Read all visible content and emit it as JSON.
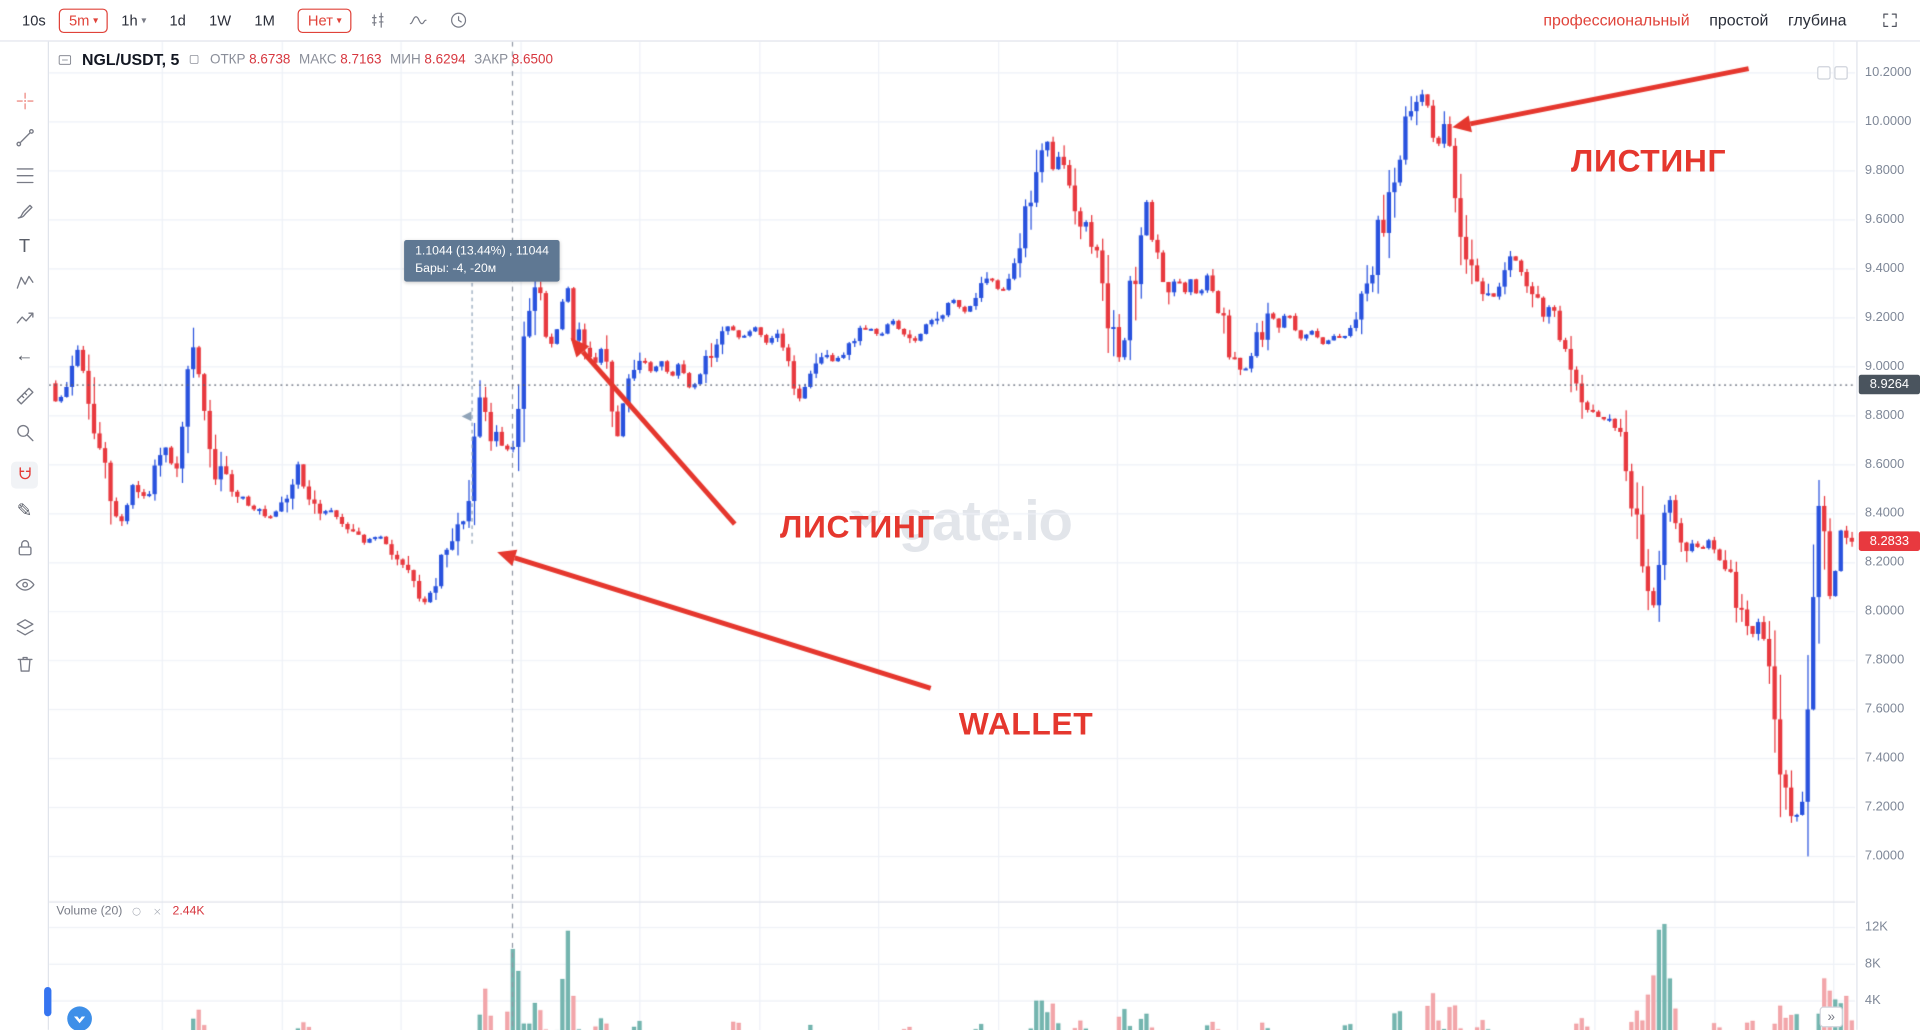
{
  "topbar": {
    "intervals": [
      "10s",
      "5m",
      "1h",
      "1d",
      "1W",
      "1M"
    ],
    "active_interval": "5m",
    "indicators_label": "Нет",
    "view_tabs": [
      "профессиональный",
      "простой",
      "глубина"
    ],
    "active_view_tab": "профессиональный"
  },
  "legend": {
    "symbol": "NGL/USDT, 5",
    "fields": [
      {
        "label": "ОТКР",
        "value": "8.6738"
      },
      {
        "label": "МАКС",
        "value": "8.7163"
      },
      {
        "label": "МИН",
        "value": "8.6294"
      },
      {
        "label": "ЗАКР",
        "value": "8.6500"
      }
    ]
  },
  "watermark": "gate.io",
  "price_axis": {
    "ticks": [
      "10.2000",
      "10.0000",
      "9.8000",
      "9.6000",
      "9.4000",
      "9.2000",
      "9.0000",
      "8.8000",
      "8.6000",
      "8.4000",
      "8.2000",
      "8.0000",
      "7.8000",
      "7.6000",
      "7.4000",
      "7.2000",
      "7.0000"
    ],
    "crosshair_price": "8.9264",
    "last_price": "8.2833"
  },
  "volume_pane": {
    "label": "Volume (20)",
    "current": "2.44K",
    "ticks": [
      "12K",
      "8K",
      "4K"
    ]
  },
  "colors": {
    "up": "#2952de",
    "down": "#e8393f",
    "accent_red": "#e5372e",
    "vol_up": "#74b5af",
    "vol_down": "#f2a6aa",
    "tooltip_bg": "#5f7893",
    "badge_dark": "#4a545e",
    "badge_red": "#e8393f",
    "grid": "#eef1f7"
  },
  "chart_data": {
    "type": "candlestick",
    "symbol": "NGL/USDT",
    "interval_minutes": 5,
    "ohlc_hovered": {
      "open": 8.6738,
      "high": 8.7163,
      "low": 8.6294,
      "close": 8.65
    },
    "y_axis": {
      "min": 7.0,
      "max": 10.2,
      "tick_step": 0.2
    },
    "crosshair_price": 8.9264,
    "last_price": 8.2833,
    "volume_current": 2440,
    "measure": {
      "line1": "1.1044 (13.44%) , 11044",
      "line2": "Бары: -4, -20м",
      "change": 1.1044,
      "percent": 13.44,
      "bars": -4,
      "time": "-20м"
    },
    "annotations": [
      {
        "text": "ЛИСТИНГ"
      },
      {
        "text": "ЛИСТИНГ"
      },
      {
        "text": "WALLET"
      }
    ],
    "price_path_keypoints": [
      [
        44,
        8.93
      ],
      [
        50,
        8.84
      ],
      [
        56,
        8.9
      ],
      [
        62,
        8.99
      ],
      [
        68,
        9.1
      ],
      [
        72,
        8.93
      ],
      [
        78,
        8.78
      ],
      [
        84,
        8.64
      ],
      [
        90,
        8.52
      ],
      [
        96,
        8.4
      ],
      [
        100,
        8.33
      ],
      [
        106,
        8.42
      ],
      [
        112,
        8.52
      ],
      [
        118,
        8.48
      ],
      [
        124,
        8.45
      ],
      [
        130,
        8.58
      ],
      [
        136,
        8.66
      ],
      [
        142,
        8.62
      ],
      [
        148,
        8.55
      ],
      [
        154,
        8.8
      ],
      [
        160,
        9.07
      ],
      [
        166,
        8.95
      ],
      [
        172,
        8.7
      ],
      [
        178,
        8.58
      ],
      [
        186,
        8.54
      ],
      [
        194,
        8.49
      ],
      [
        202,
        8.46
      ],
      [
        212,
        8.42
      ],
      [
        222,
        8.37
      ],
      [
        232,
        8.42
      ],
      [
        240,
        8.49
      ],
      [
        247,
        8.6
      ],
      [
        254,
        8.45
      ],
      [
        262,
        8.4
      ],
      [
        272,
        8.42
      ],
      [
        282,
        8.36
      ],
      [
        292,
        8.33
      ],
      [
        302,
        8.28
      ],
      [
        312,
        8.31
      ],
      [
        322,
        8.25
      ],
      [
        332,
        8.17
      ],
      [
        342,
        8.1
      ],
      [
        350,
        8.03
      ],
      [
        358,
        8.1
      ],
      [
        366,
        8.23
      ],
      [
        374,
        8.27
      ],
      [
        382,
        8.4
      ],
      [
        388,
        8.44
      ],
      [
        393,
        8.75
      ],
      [
        397,
        8.95
      ],
      [
        401,
        8.68
      ],
      [
        407,
        8.73
      ],
      [
        413,
        8.7
      ],
      [
        419,
        8.65
      ],
      [
        425,
        8.74
      ],
      [
        431,
        9.02
      ],
      [
        437,
        9.3
      ],
      [
        443,
        9.33
      ],
      [
        449,
        9.12
      ],
      [
        455,
        9.07
      ],
      [
        461,
        9.22
      ],
      [
        466,
        9.38
      ],
      [
        471,
        9.1
      ],
      [
        477,
        9.14
      ],
      [
        483,
        9.05
      ],
      [
        489,
        9.0
      ],
      [
        495,
        9.06
      ],
      [
        501,
        8.93
      ],
      [
        507,
        8.68
      ],
      [
        513,
        8.88
      ],
      [
        519,
        9.0
      ],
      [
        527,
        9.05
      ],
      [
        535,
        8.97
      ],
      [
        543,
        9.03
      ],
      [
        551,
        8.95
      ],
      [
        559,
        9.01
      ],
      [
        567,
        8.9
      ],
      [
        575,
        8.97
      ],
      [
        583,
        9.06
      ],
      [
        591,
        9.12
      ],
      [
        599,
        9.16
      ],
      [
        609,
        9.11
      ],
      [
        619,
        9.16
      ],
      [
        629,
        9.09
      ],
      [
        639,
        9.14
      ],
      [
        649,
        8.97
      ],
      [
        657,
        8.87
      ],
      [
        665,
        8.96
      ],
      [
        673,
        9.06
      ],
      [
        681,
        9.02
      ],
      [
        691,
        9.05
      ],
      [
        701,
        9.11
      ],
      [
        711,
        9.17
      ],
      [
        721,
        9.12
      ],
      [
        731,
        9.19
      ],
      [
        741,
        9.13
      ],
      [
        751,
        9.1
      ],
      [
        761,
        9.17
      ],
      [
        771,
        9.21
      ],
      [
        781,
        9.27
      ],
      [
        791,
        9.22
      ],
      [
        801,
        9.29
      ],
      [
        811,
        9.36
      ],
      [
        821,
        9.3
      ],
      [
        831,
        9.42
      ],
      [
        839,
        9.58
      ],
      [
        847,
        9.74
      ],
      [
        853,
        9.86
      ],
      [
        858,
        9.91
      ],
      [
        863,
        9.79
      ],
      [
        868,
        9.87
      ],
      [
        874,
        9.77
      ],
      [
        880,
        9.69
      ],
      [
        886,
        9.59
      ],
      [
        892,
        9.54
      ],
      [
        898,
        9.47
      ],
      [
        904,
        9.38
      ],
      [
        910,
        9.18
      ],
      [
        916,
        8.97
      ],
      [
        922,
        9.12
      ],
      [
        928,
        9.36
      ],
      [
        934,
        9.56
      ],
      [
        940,
        9.63
      ],
      [
        946,
        9.46
      ],
      [
        952,
        9.37
      ],
      [
        958,
        9.31
      ],
      [
        964,
        9.37
      ],
      [
        970,
        9.29
      ],
      [
        976,
        9.35
      ],
      [
        982,
        9.27
      ],
      [
        988,
        9.38
      ],
      [
        994,
        9.29
      ],
      [
        1000,
        9.19
      ],
      [
        1006,
        9.07
      ],
      [
        1012,
        8.99
      ],
      [
        1018,
        8.96
      ],
      [
        1024,
        9.03
      ],
      [
        1030,
        9.11
      ],
      [
        1036,
        9.17
      ],
      [
        1042,
        9.21
      ],
      [
        1048,
        9.15
      ],
      [
        1054,
        9.23
      ],
      [
        1060,
        9.15
      ],
      [
        1068,
        9.11
      ],
      [
        1076,
        9.15
      ],
      [
        1084,
        9.08
      ],
      [
        1092,
        9.13
      ],
      [
        1100,
        9.11
      ],
      [
        1106,
        9.17
      ],
      [
        1112,
        9.24
      ],
      [
        1118,
        9.33
      ],
      [
        1124,
        9.44
      ],
      [
        1130,
        9.56
      ],
      [
        1136,
        9.68
      ],
      [
        1142,
        9.8
      ],
      [
        1148,
        9.91
      ],
      [
        1154,
        10.0
      ],
      [
        1160,
        10.06
      ],
      [
        1166,
        10.13
      ],
      [
        1171,
        10.02
      ],
      [
        1176,
        9.88
      ],
      [
        1181,
        9.97
      ],
      [
        1186,
        9.9
      ],
      [
        1191,
        9.72
      ],
      [
        1197,
        9.57
      ],
      [
        1203,
        9.46
      ],
      [
        1209,
        9.38
      ],
      [
        1215,
        9.31
      ],
      [
        1221,
        9.26
      ],
      [
        1227,
        9.33
      ],
      [
        1233,
        9.41
      ],
      [
        1239,
        9.45
      ],
      [
        1245,
        9.38
      ],
      [
        1251,
        9.32
      ],
      [
        1257,
        9.27
      ],
      [
        1263,
        9.21
      ],
      [
        1269,
        9.26
      ],
      [
        1275,
        9.17
      ],
      [
        1281,
        9.05
      ],
      [
        1287,
        8.92
      ],
      [
        1293,
        8.84
      ],
      [
        1299,
        8.8
      ],
      [
        1305,
        8.83
      ],
      [
        1311,
        8.77
      ],
      [
        1317,
        8.8
      ],
      [
        1323,
        8.73
      ],
      [
        1329,
        8.69
      ],
      [
        1335,
        8.52
      ],
      [
        1341,
        8.26
      ],
      [
        1347,
        8.08
      ],
      [
        1353,
        7.99
      ],
      [
        1359,
        8.28
      ],
      [
        1364,
        8.52
      ],
      [
        1369,
        8.38
      ],
      [
        1375,
        8.3
      ],
      [
        1381,
        8.23
      ],
      [
        1387,
        8.27
      ],
      [
        1393,
        8.24
      ],
      [
        1399,
        8.3
      ],
      [
        1405,
        8.23
      ],
      [
        1411,
        8.18
      ],
      [
        1417,
        8.12
      ],
      [
        1423,
        8.02
      ],
      [
        1429,
        7.94
      ],
      [
        1435,
        7.9
      ],
      [
        1441,
        7.96
      ],
      [
        1447,
        7.84
      ],
      [
        1453,
        7.58
      ],
      [
        1459,
        7.28
      ],
      [
        1464,
        7.04
      ],
      [
        1469,
        7.16
      ],
      [
        1474,
        7.24
      ],
      [
        1479,
        7.38
      ],
      [
        1484,
        7.8
      ],
      [
        1489,
        8.55
      ],
      [
        1493,
        8.3
      ],
      [
        1497,
        8.02
      ],
      [
        1501,
        8.12
      ],
      [
        1505,
        8.28
      ],
      [
        1509,
        8.38
      ],
      [
        1513,
        8.28
      ]
    ],
    "volume_spikes": [
      [
        160,
        2600
      ],
      [
        247,
        1500
      ],
      [
        395,
        4800
      ],
      [
        419,
        10200
      ],
      [
        437,
        3800
      ],
      [
        462,
        11200
      ],
      [
        490,
        2000
      ],
      [
        520,
        1300
      ],
      [
        600,
        1500
      ],
      [
        660,
        1100
      ],
      [
        740,
        800
      ],
      [
        800,
        900
      ],
      [
        847,
        4200
      ],
      [
        858,
        3200
      ],
      [
        880,
        1400
      ],
      [
        916,
        2800
      ],
      [
        934,
        2400
      ],
      [
        988,
        1300
      ],
      [
        1030,
        1100
      ],
      [
        1100,
        1400
      ],
      [
        1140,
        3000
      ],
      [
        1168,
        4600
      ],
      [
        1185,
        3600
      ],
      [
        1210,
        1400
      ],
      [
        1290,
        2000
      ],
      [
        1335,
        2600
      ],
      [
        1347,
        5600
      ],
      [
        1356,
        13200
      ],
      [
        1364,
        3800
      ],
      [
        1400,
        1300
      ],
      [
        1428,
        1800
      ],
      [
        1453,
        3000
      ],
      [
        1464,
        2600
      ],
      [
        1489,
        6000
      ],
      [
        1497,
        3200
      ],
      [
        1506,
        4000
      ]
    ]
  }
}
